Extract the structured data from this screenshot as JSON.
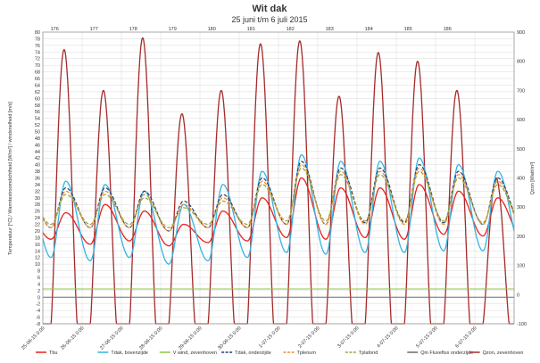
{
  "chart_data": {
    "type": "line",
    "title": "Wit dak",
    "subtitle": "25 juni t/m 6 juli 2015",
    "ylabel_left": "Temperatuur [°C] / Warmtestroomdichtheid [W/m²] / windsnelheid [m/s]",
    "ylabel_right": "Qzon [Watt/m²]",
    "ylim_left": [
      -8,
      80
    ],
    "ylim_right": [
      -100,
      900
    ],
    "xlim_days": [
      0,
      12
    ],
    "grid": true,
    "legend_position": "bottom",
    "left_ticks": [
      "-8",
      "-6",
      "-4",
      "-2",
      "0",
      "2",
      "4",
      "6",
      "8",
      "10",
      "12",
      "14",
      "16",
      "18",
      "20",
      "22",
      "24",
      "26",
      "28",
      "30",
      "32",
      "34",
      "36",
      "38",
      "40",
      "42",
      "44",
      "46",
      "48",
      "50",
      "52",
      "54",
      "56",
      "58",
      "60",
      "62",
      "64",
      "66",
      "68",
      "70",
      "72",
      "74",
      "76",
      "78",
      "80"
    ],
    "right_ticks": [
      "-100",
      "0",
      "100",
      "200",
      "300",
      "400",
      "500",
      "600",
      "700",
      "800",
      "900"
    ],
    "x_tick_labels": [
      "25-06-15 0:00",
      "26-06-15 0:00",
      "27-06-15 0:00",
      "28-06-15 0:00",
      "29-06-15 0:00",
      "30-06-15 0:00",
      "1-07-15 0:00",
      "2-07-15 0:00",
      "3-07-15 0:00",
      "4-07-15 0:00",
      "5-07-15 0:00",
      "6-07-15 0:00"
    ],
    "top_labels": [
      {
        "text": "176",
        "day": 0.3
      },
      {
        "text": "177",
        "day": 1.3
      },
      {
        "text": "178",
        "day": 2.3
      },
      {
        "text": "179",
        "day": 3.3
      },
      {
        "text": "180",
        "day": 4.3
      },
      {
        "text": "181",
        "day": 5.3
      },
      {
        "text": "182",
        "day": 6.3
      },
      {
        "text": "183",
        "day": 7.3
      },
      {
        "text": "184",
        "day": 8.3
      },
      {
        "text": "185",
        "day": 9.3
      },
      {
        "text": "186",
        "day": 10.3
      }
    ],
    "series": [
      {
        "name": "Tbu",
        "color": "#e8211d",
        "axis": "left",
        "width": 1.3,
        "dash": "",
        "min": [
          17.5,
          16,
          17,
          15.5,
          16.5,
          17,
          18,
          17.5,
          18,
          17.5,
          19,
          18.5,
          18
        ],
        "max": [
          25.5,
          28,
          26,
          22,
          26,
          30,
          36,
          33,
          33,
          34,
          32,
          30
        ]
      },
      {
        "name": "Tdak, bovenzijde",
        "color": "#33b4e6",
        "axis": "left",
        "width": 1.3,
        "dash": "",
        "min": [
          12,
          11,
          12,
          10,
          11,
          12,
          13.5,
          13,
          13.5,
          13.5,
          14,
          14,
          14
        ],
        "max": [
          35,
          34,
          32,
          28,
          34,
          38,
          43,
          41,
          41,
          42,
          40,
          38
        ]
      },
      {
        "name": "V wind, zevenhoven",
        "color": "#8cc63f",
        "axis": "left",
        "width": 1,
        "dash": "",
        "min": [
          2.5,
          2.5,
          2.5,
          2.5,
          2.5,
          2.5,
          2.5,
          2.5,
          2.5,
          2.5,
          2.5,
          2.5,
          2.5
        ],
        "max": [
          2.5,
          2.5,
          2.5,
          2.5,
          2.5,
          2.5,
          2.5,
          2.5,
          2.5,
          2.5,
          2.5,
          2.5,
          2.5
        ]
      },
      {
        "name": "Tdak, onderzijde",
        "color": "#1f3f7a",
        "axis": "left",
        "width": 1.2,
        "dash": "4 2",
        "min": [
          21,
          21,
          21,
          20,
          21,
          21,
          22,
          22,
          22.5,
          22.5,
          22.5,
          22,
          22
        ],
        "max": [
          33,
          33,
          32,
          29,
          31,
          36,
          41,
          39,
          39,
          40,
          38,
          36
        ]
      },
      {
        "name": "Tplenum",
        "color": "#f28e2b",
        "axis": "left",
        "width": 1.2,
        "dash": "4 2",
        "min": [
          21,
          21,
          21,
          20,
          21,
          21,
          22,
          22,
          22,
          22,
          22,
          22,
          21.5
        ],
        "max": [
          32,
          32,
          31,
          28,
          30,
          35,
          40,
          38,
          38,
          39,
          37,
          35
        ]
      },
      {
        "name": "Tplafond",
        "color": "#9aa53a",
        "axis": "left",
        "width": 1.2,
        "dash": "4 2",
        "min": [
          22,
          22,
          22,
          21,
          22,
          22,
          23,
          23,
          23,
          23,
          23,
          22.5,
          22.5
        ],
        "max": [
          31,
          31,
          30,
          27,
          29,
          34,
          39,
          37,
          37,
          38,
          36,
          34
        ]
      },
      {
        "name": "Qin Fluxeflux onderzijde",
        "color": "#6b6b6b",
        "axis": "left",
        "width": 1,
        "dash": "",
        "min": [
          0,
          0,
          0,
          0,
          0,
          0,
          0,
          0,
          0,
          0,
          0,
          0,
          0
        ],
        "max": [
          0,
          0,
          0,
          0,
          0,
          0,
          0,
          0,
          0,
          0,
          0,
          0,
          0
        ]
      },
      {
        "name": "Qzon, zevenhoven",
        "color": "#a52a2a",
        "axis": "right",
        "width": 1.3,
        "dash": "",
        "min": [
          -100,
          -100,
          -100,
          -100,
          -100,
          -100,
          -100,
          -100,
          -100,
          -100,
          -100,
          -100,
          -100
        ],
        "max": [
          840,
          700,
          880,
          620,
          700,
          860,
          870,
          680,
          830,
          800,
          700,
          400
        ]
      }
    ]
  }
}
